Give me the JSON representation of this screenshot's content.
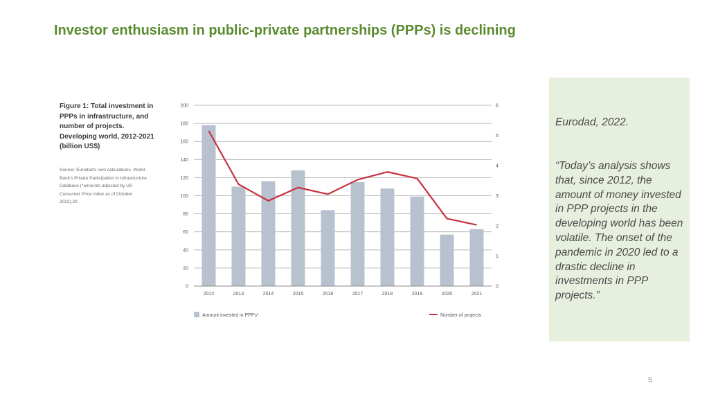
{
  "slide": {
    "title": "Investor enthusiasm in public-private partnerships (PPPs) is declining",
    "page_number": "5"
  },
  "figure": {
    "caption": "Figure 1: Total investment in PPPs in infrastructure, and number of projects. Developing world, 2012-2021 (billion US$)",
    "source": "Source: Eurodad's own calculations. World Bank's Private Participation in Infrastructure Database (*amounts adjusted by US Consumer Price Index as of October 2022).20"
  },
  "quote_panel": {
    "source": "Eurodad, 2022.",
    "quote": "“Today’s analysis shows that, since 2012, the amount of money invested in PPP projects in the developing world has been volatile. The onset of the pandemic in 2020 led to a drastic decline in investments in PPP projects.”",
    "background": "#e7f0de"
  },
  "chart_data": {
    "type": "bar",
    "categories": [
      "2012",
      "2013",
      "2014",
      "2015",
      "2016",
      "2017",
      "2018",
      "2019",
      "2020",
      "2021"
    ],
    "series": [
      {
        "name": "Amount invested in PPPs*",
        "type": "bar",
        "axis": "left",
        "values": [
          178,
          110,
          116,
          128,
          84,
          115,
          108,
          99,
          57,
          63
        ],
        "color": "#b8c2cf"
      },
      {
        "name": "Number of projects",
        "type": "line",
        "axis": "right",
        "values": [
          515,
          338,
          283,
          327,
          305,
          353,
          379,
          357,
          224,
          203
        ],
        "color": "#c8303f"
      }
    ],
    "left_axis": {
      "ylim": [
        0,
        200
      ],
      "ticks": [
        "0",
        "20",
        "40",
        "60",
        "80",
        "100",
        "120",
        "140",
        "160",
        "180",
        "200"
      ]
    },
    "right_axis": {
      "ylim": [
        0,
        600
      ],
      "ticks": [
        "0",
        "100",
        "200",
        "300",
        "400",
        "500",
        "600"
      ]
    },
    "grid": true,
    "legend_position": "bottom"
  }
}
